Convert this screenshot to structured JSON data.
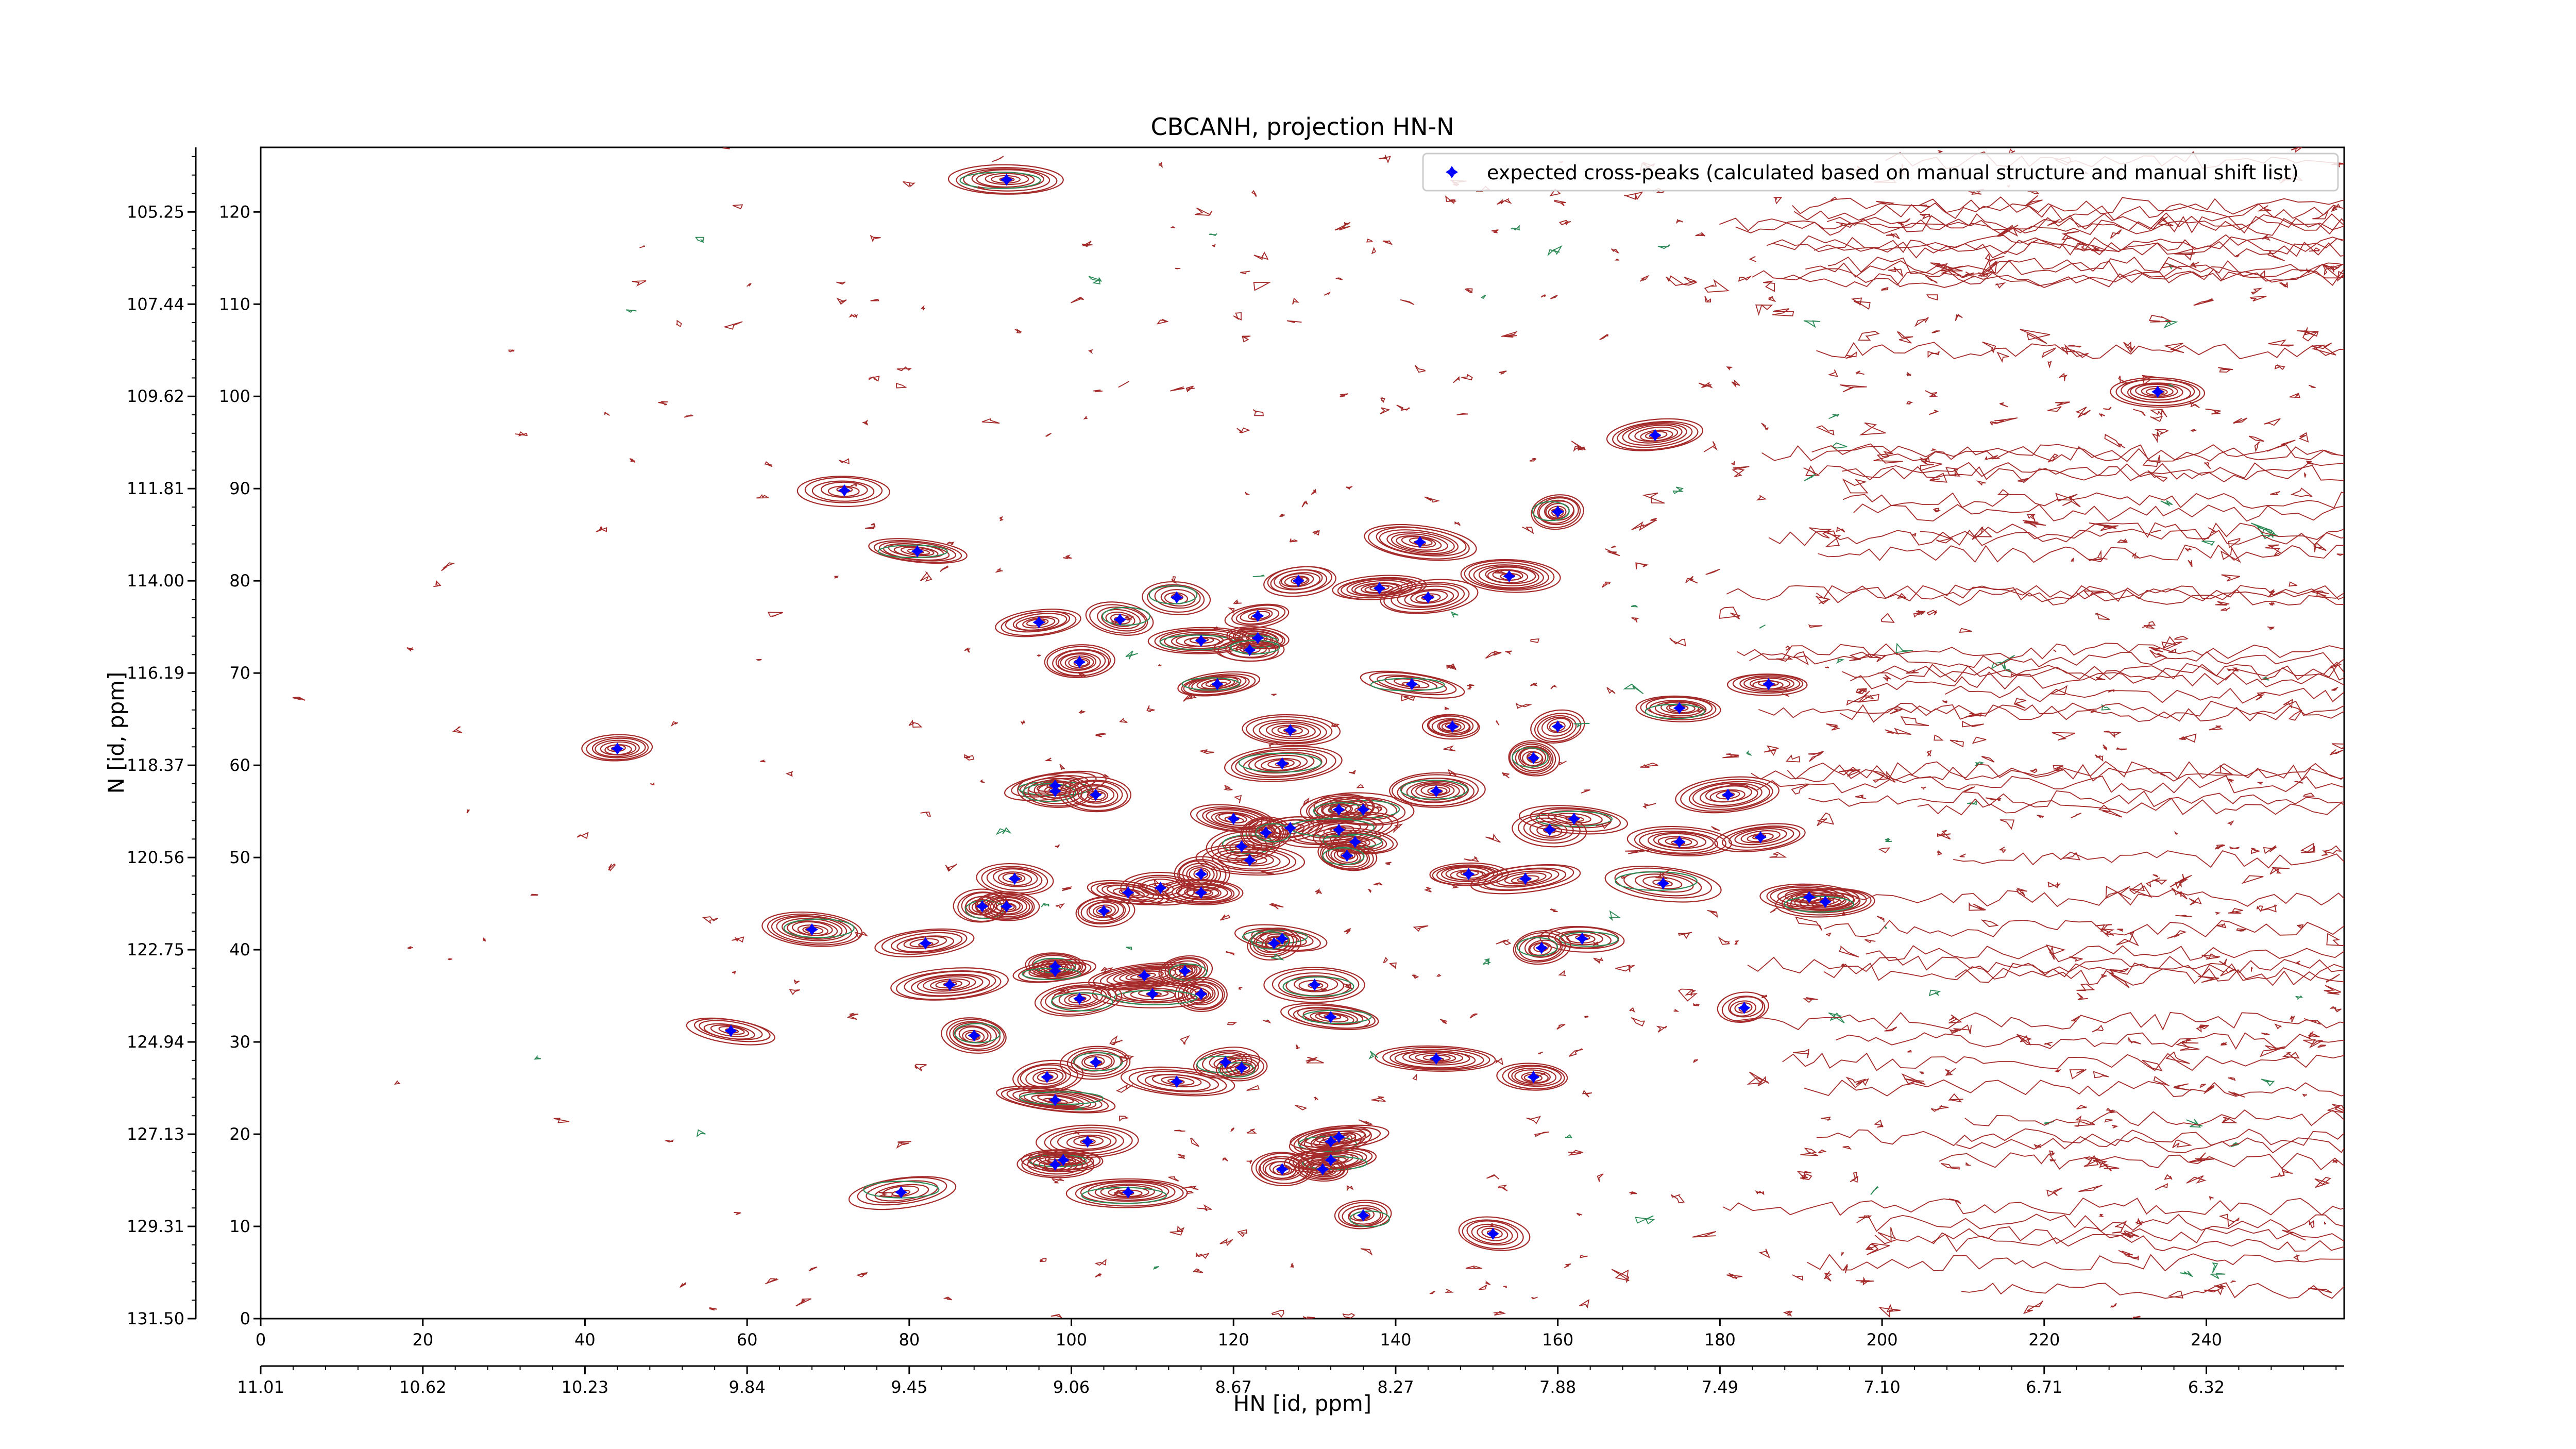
{
  "chart_data": {
    "type": "scatter",
    "title": "CBCANH, projection HN-N",
    "xlabel": "HN [id, ppm]",
    "ylabel": "N [id, ppm]",
    "xlim": [
      0,
      257
    ],
    "ylim": [
      0,
      127
    ],
    "x_ticks_index": [
      0,
      20,
      40,
      60,
      80,
      100,
      120,
      140,
      160,
      180,
      200,
      220,
      240
    ],
    "x_ticks_ppm": [
      "11.01",
      "10.62",
      "10.23",
      "9.84",
      "9.45",
      "9.06",
      "8.67",
      "8.27",
      "7.88",
      "7.49",
      "7.10",
      "6.71",
      "6.32"
    ],
    "y_ticks_index": [
      0,
      10,
      20,
      30,
      40,
      50,
      60,
      70,
      80,
      90,
      100,
      110,
      120
    ],
    "y_ticks_ppm": [
      "131.50",
      "129.31",
      "127.13",
      "124.94",
      "122.75",
      "120.56",
      "118.37",
      "116.19",
      "114.00",
      "111.81",
      "109.62",
      "107.44",
      "105.25"
    ],
    "legend": {
      "label": "expected cross-peaks (calculated based on manual structure and manual shift list)",
      "position": "top-right"
    },
    "colors": {
      "contour_positive": "#a52a2a",
      "contour_negative": "#2e8b57",
      "marker": "#0000ff"
    },
    "series": [
      {
        "name": "expected cross-peaks (calculated based on manual structure and manual shift list)",
        "points": [
          [
            92,
            123.5
          ],
          [
            234,
            100.5
          ],
          [
            172,
            95.8
          ],
          [
            72,
            89.8
          ],
          [
            160,
            87.5
          ],
          [
            81,
            83.2
          ],
          [
            143,
            84.2
          ],
          [
            128,
            80
          ],
          [
            138,
            79.2
          ],
          [
            144,
            78.2
          ],
          [
            154,
            80.5
          ],
          [
            113,
            78.2
          ],
          [
            123,
            76.2
          ],
          [
            96,
            75.5
          ],
          [
            106,
            75.8
          ],
          [
            116,
            73.5
          ],
          [
            123,
            73.8
          ],
          [
            122,
            72.5
          ],
          [
            101,
            71.2
          ],
          [
            118,
            68.8
          ],
          [
            142,
            68.8
          ],
          [
            175,
            66.2
          ],
          [
            186,
            68.8
          ],
          [
            127,
            63.8
          ],
          [
            147,
            64.2
          ],
          [
            160,
            64.2
          ],
          [
            157,
            60.8
          ],
          [
            126,
            60.2
          ],
          [
            44,
            61.8
          ],
          [
            98,
            57.8
          ],
          [
            98,
            57.2
          ],
          [
            103,
            56.8
          ],
          [
            145,
            57.2
          ],
          [
            181,
            56.8
          ],
          [
            120,
            54.2
          ],
          [
            136,
            55.2
          ],
          [
            133,
            55.2
          ],
          [
            162,
            54.2
          ],
          [
            127,
            53.2
          ],
          [
            133,
            53
          ],
          [
            159,
            53
          ],
          [
            121,
            51.2
          ],
          [
            124,
            52.7
          ],
          [
            135,
            51.7
          ],
          [
            134,
            50.2
          ],
          [
            122,
            49.7
          ],
          [
            175,
            51.7
          ],
          [
            185,
            52.2
          ],
          [
            93,
            47.7
          ],
          [
            116,
            48.2
          ],
          [
            149,
            48.2
          ],
          [
            156,
            47.7
          ],
          [
            173,
            47.2
          ],
          [
            111,
            46.7
          ],
          [
            116,
            46.2
          ],
          [
            107,
            46.2
          ],
          [
            104,
            44.2
          ],
          [
            89,
            44.7
          ],
          [
            92,
            44.7
          ],
          [
            191,
            45.7
          ],
          [
            193,
            45.2
          ],
          [
            68,
            42.2
          ],
          [
            82,
            40.7
          ],
          [
            126,
            41.2
          ],
          [
            125,
            40.7
          ],
          [
            163,
            41.2
          ],
          [
            158,
            40.2
          ],
          [
            98,
            38.2
          ],
          [
            98,
            37.7
          ],
          [
            109,
            37.2
          ],
          [
            114,
            37.7
          ],
          [
            85,
            36.2
          ],
          [
            116,
            35.2
          ],
          [
            110,
            35.2
          ],
          [
            101,
            34.7
          ],
          [
            130,
            36.2
          ],
          [
            183,
            33.7
          ],
          [
            132,
            32.7
          ],
          [
            58,
            31.2
          ],
          [
            88,
            30.7
          ],
          [
            103,
            27.8
          ],
          [
            145,
            28.2
          ],
          [
            97,
            26.2
          ],
          [
            113,
            25.7
          ],
          [
            119,
            27.8
          ],
          [
            121,
            27.2
          ],
          [
            157,
            26.2
          ],
          [
            98,
            23.7
          ],
          [
            132,
            19.2
          ],
          [
            133,
            19.7
          ],
          [
            102,
            19.2
          ],
          [
            99,
            17.2
          ],
          [
            98,
            16.7
          ],
          [
            126,
            16.2
          ],
          [
            132,
            17.2
          ],
          [
            131,
            16.2
          ],
          [
            79,
            13.7
          ],
          [
            107,
            13.7
          ],
          [
            136,
            11.2
          ],
          [
            152,
            9.2
          ]
        ]
      }
    ]
  }
}
